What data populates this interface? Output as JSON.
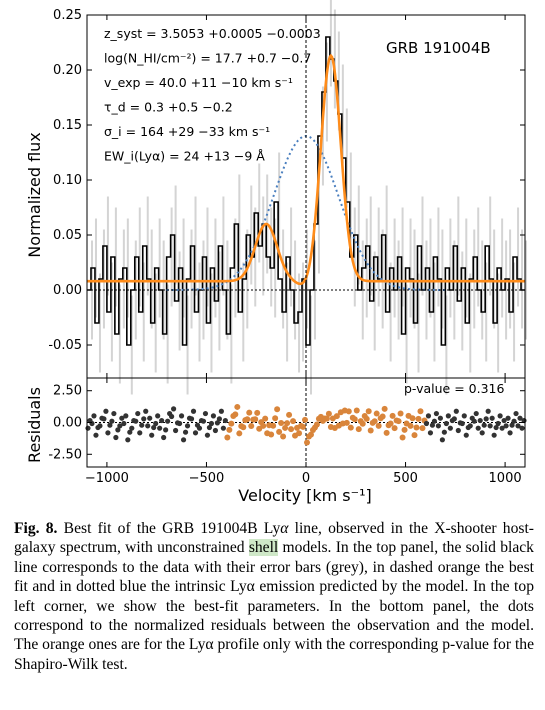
{
  "chart_data": [
    {
      "type": "line",
      "panel": "top",
      "ylabel": "Normalized flux",
      "xlim": [
        -1100,
        1100
      ],
      "ylim": [
        -0.08,
        0.25
      ],
      "yticks": [
        -0.05,
        0.0,
        0.05,
        0.1,
        0.15,
        0.2,
        0.25
      ],
      "ytick_labels": [
        "-0.05",
        "0.00",
        "0.05",
        "0.10",
        "0.15",
        "0.20",
        "0.25"
      ],
      "label": "GRB 191004B",
      "parameters": [
        "z_syst = 3.5053 +0.0005 −0.0003",
        "log(N_HI/cm⁻²) = 17.7 +0.7 −0.7",
        "v_exp = 40.0 +11 −10 km s⁻¹",
        "τ_d = 0.3 +0.5 −0.2",
        "σ_i = 164 +29 −33 km s⁻¹",
        "EW_i(Lyα) = 24 +13 −9 Å"
      ],
      "series": [
        {
          "kind": "data-step",
          "x": [
            -1100,
            -1080,
            -1060,
            -1040,
            -1020,
            -1000,
            -980,
            -960,
            -940,
            -920,
            -900,
            -880,
            -860,
            -840,
            -820,
            -800,
            -780,
            -760,
            -740,
            -720,
            -700,
            -680,
            -660,
            -640,
            -620,
            -600,
            -580,
            -560,
            -540,
            -520,
            -500,
            -480,
            -460,
            -440,
            -420,
            -400,
            -380,
            -360,
            -340,
            -320,
            -300,
            -280,
            -260,
            -240,
            -220,
            -200,
            -180,
            -160,
            -140,
            -120,
            -100,
            -80,
            -60,
            -40,
            -20,
            0,
            20,
            40,
            60,
            80,
            100,
            120,
            140,
            160,
            180,
            200,
            220,
            240,
            260,
            280,
            300,
            320,
            340,
            360,
            380,
            400,
            420,
            440,
            460,
            480,
            500,
            520,
            540,
            560,
            580,
            600,
            620,
            640,
            660,
            680,
            700,
            720,
            740,
            760,
            780,
            800,
            820,
            840,
            860,
            880,
            900,
            920,
            940,
            960,
            980,
            1000,
            1020,
            1040,
            1060,
            1080
          ],
          "y": [
            0.0,
            0.02,
            -0.03,
            0.01,
            0.04,
            -0.02,
            0.03,
            -0.04,
            0.01,
            0.02,
            -0.05,
            0.0,
            0.03,
            -0.02,
            0.04,
            0.01,
            -0.03,
            0.02,
            0.0,
            -0.04,
            0.03,
            0.05,
            -0.01,
            0.02,
            -0.05,
            0.01,
            0.04,
            -0.02,
            0.0,
            0.03,
            -0.03,
            0.02,
            -0.01,
            0.04,
            0.0,
            -0.04,
            0.02,
            0.06,
            -0.02,
            0.01,
            0.05,
            0.03,
            0.07,
            0.04,
            0.06,
            0.03,
            0.02,
            0.08,
            0.01,
            -0.02,
            0.03,
            0.0,
            -0.03,
            -0.02,
            0.01,
            -0.05,
            0.0,
            0.06,
            0.14,
            0.18,
            0.23,
            0.21,
            0.19,
            0.16,
            0.12,
            0.08,
            0.03,
            0.05,
            0.0,
            0.02,
            0.04,
            -0.01,
            0.03,
            0.01,
            0.05,
            -0.02,
            0.02,
            0.0,
            0.03,
            -0.04,
            0.02,
            0.01,
            -0.03,
            0.04,
            0.0,
            0.02,
            -0.02,
            0.03,
            0.01,
            -0.05,
            0.02,
            0.0,
            0.04,
            -0.01,
            0.02,
            -0.03,
            0.01,
            0.03,
            0.0,
            -0.02,
            0.04,
            0.01,
            -0.03,
            0.02,
            0.0,
            0.01,
            -0.02,
            0.03,
            0.01,
            0.0
          ]
        },
        {
          "kind": "best-fit",
          "style": "dashed orange",
          "baseline": 0.008
        },
        {
          "kind": "intrinsic",
          "style": "dotted blue",
          "peak_x": 0,
          "peak_y": 0.14,
          "sigma_kms": 164
        }
      ]
    },
    {
      "type": "scatter",
      "panel": "bottom",
      "xlabel": "Velocity [km s⁻¹]",
      "ylabel": "Residuals",
      "xlim": [
        -1100,
        1100
      ],
      "ylim": [
        -3.5,
        3.5
      ],
      "yticks": [
        -2.5,
        0.0,
        2.5
      ],
      "ytick_labels": [
        "-2.50",
        "0.00",
        "2.50"
      ],
      "xticks": [
        -1000,
        -500,
        0,
        500,
        1000
      ],
      "xtick_labels": [
        "−1000",
        "−500",
        "0",
        "500",
        "1000"
      ],
      "annotation": "p-value = 0.316"
    }
  ],
  "caption": {
    "label": "Fig. 8.",
    "text_before": " Best fit of the GRB 191004B Ly",
    "alpha": "α",
    "text_mid": " line, observed in the X-shooter host-galaxy spectrum, with unconstrained ",
    "highlight": "shell",
    "text_after": " models. In the top panel, the solid black line corresponds to the data with their error bars (grey), in dashed orange the best fit and in dotted blue the intrinsic Lyα emission predicted by the model. In the top left corner, we show the best-fit parameters. In the bottom panel, the dots correspond to the normalized residuals between the observation and the model. The orange ones are for the Lyα profile only with the corresponding p-value for the Shapiro-Wilk test."
  },
  "colors": {
    "data": "#000000",
    "error": "#d4d4d4",
    "fit": "#ff8c1a",
    "intrinsic": "#4a7fbf",
    "residual_dark": "#333333",
    "residual_orange": "#d9853b"
  }
}
